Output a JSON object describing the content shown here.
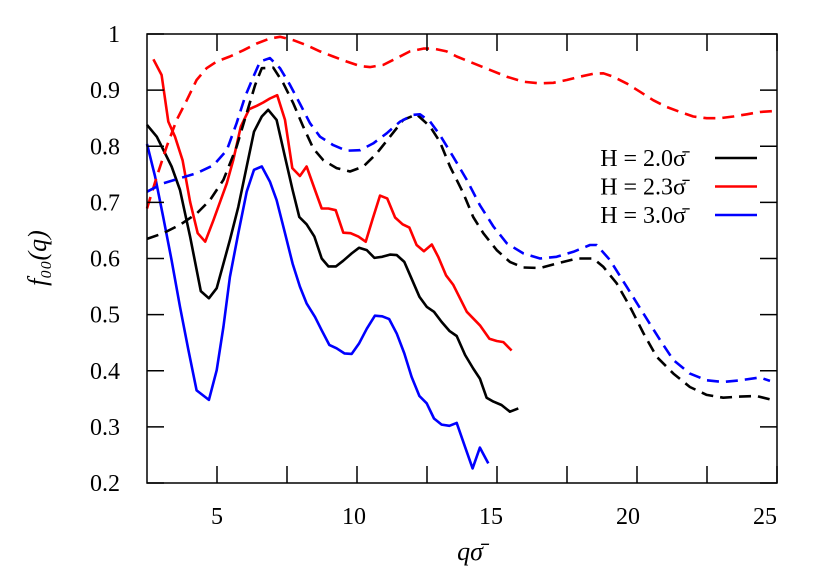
{
  "chart_data": {
    "type": "line",
    "title": "",
    "xlabel": "qσ̄",
    "ylabel": "f₀₀(q)",
    "xlim": [
      2.5,
      25
    ],
    "ylim": [
      0.2,
      1.0
    ],
    "x_ticks": [
      5,
      10,
      15,
      20,
      25
    ],
    "x_tick_labels": [
      "5",
      "10",
      "15",
      "20",
      "25"
    ],
    "x_minor_ticks": [
      7.5,
      12.5,
      17.5,
      22.5
    ],
    "y_ticks": [
      0.2,
      0.3,
      0.4,
      0.5,
      0.6,
      0.7,
      0.8,
      0.9,
      1.0
    ],
    "y_tick_labels": [
      "0.2",
      "0.3",
      "0.4",
      "0.5",
      "0.6",
      "0.7",
      "0.8",
      "0.9",
      "1"
    ],
    "grid": false,
    "legend_placement": "right",
    "series": [
      {
        "name": "H = 2.0σ̄",
        "color": "#000000",
        "style": "solid",
        "x": [
          2.5,
          2.85,
          3.38,
          3.68,
          4.04,
          4.42,
          4.71,
          4.99,
          5.46,
          5.76,
          6.06,
          6.32,
          6.6,
          6.83,
          7.13,
          7.43,
          7.7,
          7.94,
          8.2,
          8.48,
          8.74,
          8.98,
          9.25,
          9.51,
          9.81,
          10.07,
          10.35,
          10.62,
          10.9,
          11.18,
          11.42,
          11.69,
          11.95,
          12.23,
          12.49,
          12.75,
          13.02,
          13.3,
          13.56,
          13.86,
          14.15,
          14.39,
          14.63,
          14.87,
          15.16,
          15.46,
          15.76
        ],
        "y": [
          0.838,
          0.817,
          0.764,
          0.722,
          0.639,
          0.542,
          0.529,
          0.547,
          0.633,
          0.692,
          0.764,
          0.826,
          0.853,
          0.865,
          0.847,
          0.781,
          0.722,
          0.674,
          0.661,
          0.639,
          0.6,
          0.586,
          0.586,
          0.596,
          0.609,
          0.619,
          0.615,
          0.601,
          0.603,
          0.607,
          0.606,
          0.594,
          0.564,
          0.532,
          0.514,
          0.505,
          0.487,
          0.471,
          0.462,
          0.428,
          0.404,
          0.386,
          0.352,
          0.345,
          0.339,
          0.327,
          0.333
        ]
      },
      {
        "name": "H = 2.3σ̄",
        "color": "#ff0000",
        "style": "solid",
        "x": [
          2.73,
          3.02,
          3.26,
          3.5,
          3.77,
          4.04,
          4.31,
          4.58,
          4.87,
          5.35,
          5.58,
          5.85,
          6.15,
          6.42,
          6.65,
          6.89,
          7.15,
          7.43,
          7.69,
          7.96,
          8.2,
          8.5,
          8.74,
          8.98,
          9.24,
          9.51,
          9.77,
          10.05,
          10.31,
          10.56,
          10.82,
          11.08,
          11.36,
          11.63,
          11.87,
          12.13,
          12.39,
          12.67,
          12.9,
          13.18,
          13.44,
          13.92,
          14.39,
          14.73,
          14.99,
          15.23,
          15.52
        ],
        "y": [
          0.955,
          0.927,
          0.844,
          0.817,
          0.775,
          0.701,
          0.645,
          0.63,
          0.668,
          0.734,
          0.775,
          0.835,
          0.866,
          0.872,
          0.878,
          0.885,
          0.891,
          0.847,
          0.761,
          0.747,
          0.764,
          0.722,
          0.689,
          0.689,
          0.686,
          0.646,
          0.645,
          0.639,
          0.63,
          0.671,
          0.712,
          0.707,
          0.673,
          0.661,
          0.655,
          0.624,
          0.613,
          0.625,
          0.603,
          0.57,
          0.553,
          0.505,
          0.481,
          0.457,
          0.453,
          0.451,
          0.436
        ]
      },
      {
        "name": "H = 3.0σ̄",
        "color": "#0000ff",
        "style": "solid",
        "x": [
          2.5,
          2.79,
          3.08,
          3.38,
          3.68,
          3.98,
          4.27,
          4.71,
          4.99,
          5.23,
          5.46,
          5.76,
          6.06,
          6.32,
          6.6,
          6.89,
          7.13,
          7.43,
          7.7,
          7.96,
          8.2,
          8.5,
          8.74,
          9.01,
          9.27,
          9.55,
          9.81,
          10.08,
          10.35,
          10.64,
          10.9,
          11.15,
          11.42,
          11.69,
          11.95,
          12.23,
          12.49,
          12.75,
          13.02,
          13.3,
          13.56,
          13.86,
          14.13,
          14.39,
          14.69
        ],
        "y": [
          0.804,
          0.746,
          0.674,
          0.597,
          0.514,
          0.437,
          0.365,
          0.348,
          0.401,
          0.478,
          0.567,
          0.645,
          0.719,
          0.758,
          0.764,
          0.737,
          0.704,
          0.645,
          0.591,
          0.55,
          0.52,
          0.496,
          0.472,
          0.446,
          0.44,
          0.431,
          0.43,
          0.449,
          0.475,
          0.498,
          0.497,
          0.492,
          0.466,
          0.431,
          0.389,
          0.355,
          0.342,
          0.315,
          0.304,
          0.302,
          0.307,
          0.264,
          0.226,
          0.263,
          0.235
        ]
      },
      {
        "color": "#000000",
        "style": "dashed",
        "x": [
          2.5,
          3.08,
          3.68,
          4.27,
          4.75,
          5.23,
          5.7,
          6.06,
          6.36,
          6.6,
          7.01,
          7.37,
          7.73,
          8.08,
          8.44,
          8.8,
          9.27,
          9.75,
          10.23,
          10.7,
          11.18,
          11.65,
          12.13,
          12.61,
          12.96,
          13.32,
          13.8,
          14.15,
          14.51,
          14.99,
          15.46,
          15.94,
          16.54,
          17.13,
          17.85,
          18.44,
          18.8,
          19.27,
          19.75,
          20.23,
          20.7,
          21.3,
          21.89,
          22.49,
          23.08,
          23.68,
          24.27,
          24.75
        ],
        "y": [
          0.635,
          0.645,
          0.66,
          0.68,
          0.704,
          0.74,
          0.799,
          0.859,
          0.909,
          0.939,
          0.94,
          0.912,
          0.876,
          0.835,
          0.796,
          0.775,
          0.761,
          0.755,
          0.764,
          0.787,
          0.817,
          0.847,
          0.857,
          0.835,
          0.808,
          0.764,
          0.716,
          0.674,
          0.645,
          0.615,
          0.594,
          0.584,
          0.583,
          0.591,
          0.6,
          0.6,
          0.585,
          0.556,
          0.514,
          0.467,
          0.425,
          0.395,
          0.371,
          0.357,
          0.352,
          0.354,
          0.355,
          0.349
        ]
      },
      {
        "color": "#ff0000",
        "style": "dashed",
        "x": [
          2.5,
          2.85,
          3.2,
          3.56,
          3.92,
          4.27,
          4.63,
          4.99,
          5.46,
          5.94,
          6.42,
          6.89,
          7.25,
          7.73,
          8.2,
          8.68,
          9.15,
          9.63,
          10.11,
          10.46,
          10.94,
          11.42,
          11.89,
          12.37,
          12.73,
          13.2,
          13.56,
          14.15,
          14.75,
          15.35,
          15.94,
          16.54,
          17.01,
          17.49,
          17.96,
          18.44,
          18.8,
          19.15,
          19.63,
          20.11,
          20.58,
          21.06,
          21.54,
          22.01,
          22.49,
          22.96,
          23.44,
          23.92,
          24.39,
          25.0
        ],
        "y": [
          0.689,
          0.746,
          0.799,
          0.847,
          0.882,
          0.918,
          0.939,
          0.951,
          0.96,
          0.971,
          0.983,
          0.992,
          0.995,
          0.989,
          0.98,
          0.969,
          0.96,
          0.951,
          0.943,
          0.941,
          0.945,
          0.957,
          0.969,
          0.974,
          0.974,
          0.969,
          0.96,
          0.948,
          0.936,
          0.924,
          0.915,
          0.912,
          0.913,
          0.918,
          0.924,
          0.929,
          0.93,
          0.924,
          0.912,
          0.897,
          0.882,
          0.87,
          0.861,
          0.853,
          0.85,
          0.85,
          0.853,
          0.857,
          0.861,
          0.863
        ]
      },
      {
        "color": "#0000ff",
        "style": "dashed",
        "x": [
          2.5,
          3.08,
          3.68,
          4.27,
          4.87,
          5.35,
          5.7,
          6.0,
          6.3,
          6.54,
          6.89,
          7.25,
          7.61,
          7.96,
          8.32,
          8.68,
          9.15,
          9.63,
          10.11,
          10.58,
          11.06,
          11.54,
          12.01,
          12.25,
          12.61,
          12.96,
          13.44,
          13.92,
          14.39,
          14.87,
          15.35,
          15.94,
          16.54,
          17.13,
          17.73,
          18.32,
          18.56,
          19.04,
          19.63,
          20.23,
          20.82,
          21.3,
          21.89,
          22.49,
          23.08,
          23.68,
          24.39,
          24.75
        ],
        "y": [
          0.719,
          0.734,
          0.743,
          0.752,
          0.766,
          0.793,
          0.841,
          0.888,
          0.924,
          0.951,
          0.957,
          0.939,
          0.909,
          0.876,
          0.841,
          0.817,
          0.802,
          0.792,
          0.793,
          0.805,
          0.823,
          0.844,
          0.856,
          0.857,
          0.844,
          0.82,
          0.781,
          0.74,
          0.695,
          0.657,
          0.627,
          0.609,
          0.6,
          0.603,
          0.612,
          0.624,
          0.624,
          0.597,
          0.55,
          0.502,
          0.455,
          0.419,
          0.395,
          0.383,
          0.38,
          0.383,
          0.388,
          0.382
        ]
      }
    ]
  }
}
